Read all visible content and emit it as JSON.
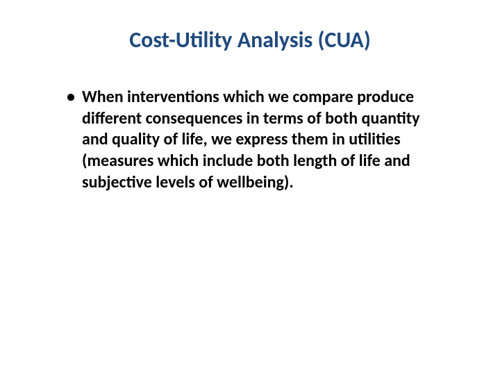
{
  "slide": {
    "title": "Cost-Utility Analysis (CUA)",
    "title_color": "#1f497d",
    "title_fontsize": 32,
    "bullets": [
      {
        "text": "When interventions which we compare produce different consequences in terms of both quantity and quality of life, we express them in utilities (measures which include both length of life and subjective levels of wellbeing)."
      }
    ],
    "body_color": "#000000",
    "body_fontsize": 24,
    "background_color": "#ffffff"
  }
}
